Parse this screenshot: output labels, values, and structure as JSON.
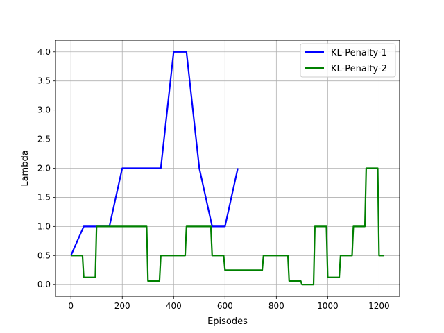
{
  "chart_data": {
    "type": "line",
    "title": "",
    "xlabel": "Episodes",
    "ylabel": "Lambda",
    "xlim": [
      -60,
      1280
    ],
    "ylim": [
      -0.2,
      4.2
    ],
    "x_ticks": [
      0,
      200,
      400,
      600,
      800,
      1000,
      1200
    ],
    "x_tick_labels": [
      "0",
      "200",
      "400",
      "600",
      "800",
      "1000",
      "1200"
    ],
    "y_ticks": [
      0.0,
      0.5,
      1.0,
      1.5,
      2.0,
      2.5,
      3.0,
      3.5,
      4.0
    ],
    "y_tick_labels": [
      "0.0",
      "0.5",
      "1.0",
      "1.5",
      "2.0",
      "2.5",
      "3.0",
      "3.5",
      "4.0"
    ],
    "grid": true,
    "legend": "top-right",
    "series": [
      {
        "name": "KL-Penalty-1",
        "color": "#0000ff",
        "x": [
          0,
          50,
          100,
          150,
          200,
          250,
          300,
          350,
          400,
          450,
          500,
          550,
          600,
          650
        ],
        "y": [
          0.5,
          1.0,
          1.0,
          1.0,
          2.0,
          2.0,
          2.0,
          2.0,
          4.0,
          4.0,
          2.0,
          1.0,
          1.0,
          2.0
        ]
      },
      {
        "name": "KL-Penalty-2",
        "color": "#008000",
        "x": [
          0,
          45,
          50,
          95,
          100,
          295,
          300,
          345,
          350,
          445,
          450,
          545,
          550,
          595,
          600,
          745,
          750,
          845,
          850,
          895,
          900,
          945,
          950,
          995,
          1000,
          1045,
          1050,
          1095,
          1100,
          1145,
          1150,
          1195,
          1200,
          1220
        ],
        "y": [
          0.5,
          0.5,
          0.125,
          0.125,
          1.0,
          1.0,
          0.0625,
          0.0625,
          0.5,
          0.5,
          1.0,
          1.0,
          0.5,
          0.5,
          0.25,
          0.25,
          0.5,
          0.5,
          0.0625,
          0.0625,
          0.0,
          0.0,
          1.0,
          1.0,
          0.125,
          0.125,
          0.5,
          0.5,
          1.0,
          1.0,
          2.0,
          2.0,
          0.5,
          0.5
        ]
      }
    ]
  }
}
